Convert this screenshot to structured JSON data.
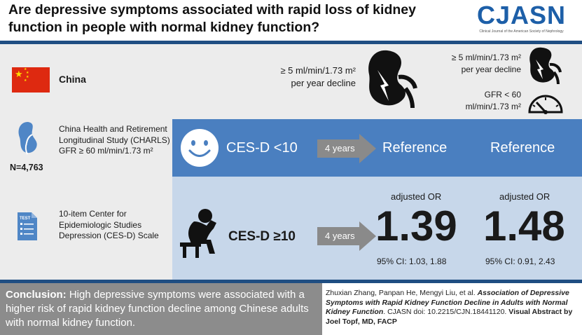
{
  "header": {
    "title": "Are depressive symptoms associated with rapid loss of kidney function in people with normal kidney function?",
    "logo_text": "CJASN",
    "logo_subtitle": "Clinical Journal of the American Society of Nephrology"
  },
  "population": {
    "country": "China",
    "study": "China Health and Retirement Longitudinal Study (CHARLS)",
    "gfr": "GFR ≥ 60 ml/min/1.73 m²",
    "n": "N=4,763",
    "scale": "10-item Center for Epidemiologic Studies Depression (CES-D) Scale"
  },
  "outcomes": {
    "outcome1_line1": "≥ 5 ml/min/1.73 m²",
    "outcome1_line2": "per year decline",
    "outcome2_line1": "≥ 5 ml/min/1.73 m²",
    "outcome2_line2": "per year decline",
    "outcome2_gfr_line1": "GFR < 60",
    "outcome2_gfr_line2": "ml/min/1.73 m²"
  },
  "groups": {
    "low_label": "CES-D <10",
    "high_label": "CES-D ≥10",
    "followup": "4 years",
    "reference": "Reference"
  },
  "results": {
    "or_label": "adjusted OR",
    "or1": "1.39",
    "ci1": "95% CI: 1.03, 1.88",
    "or2": "1.48",
    "ci2": "95% CI: 0.91, 2.43"
  },
  "footer": {
    "conclusion_label": "Conclusion:",
    "conclusion_text": " High depressive symptoms were associated with a higher risk of rapid kidney function decline among Chinese adults with normal kidney function.",
    "authors": "Zhuxian Zhang, Panpan He, Mengyi Liu, et al. ",
    "article_title": "Association of Depressive Symptoms with Rapid Kidney Function Decline in Adults with Normal Kidney Function",
    "doi": ". CJASN doi: 10.2215/CJN.18441120. ",
    "credit": "Visual Abstract by Joel Topf, MD, FACP"
  },
  "colors": {
    "brand_blue": "#1d5fa8",
    "rule_navy": "#1f4e82",
    "reference_row": "#4a7fc0",
    "exposure_row": "#c7d7ea",
    "panel_gray": "#ececec",
    "conclusion_gray": "#8c8c8c",
    "arrow_gray": "#8a8a8a",
    "flag_red": "#de2910",
    "flag_yellow": "#ffde00"
  },
  "icons": [
    "china-flag-icon",
    "kidney-icon",
    "kidney-decline-icon",
    "gauge-icon",
    "smiley-face-icon",
    "depressed-person-icon",
    "document-test-icon",
    "arrow-right-icon"
  ]
}
